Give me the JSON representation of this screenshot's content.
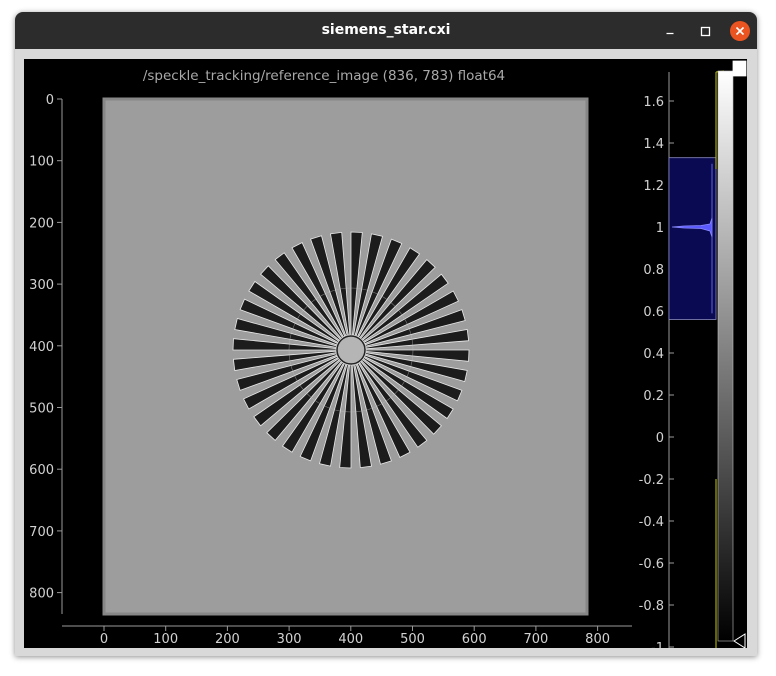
{
  "window": {
    "title": "siemens_star.cxi"
  },
  "plot": {
    "title": "/speckle_tracking/reference_image (836, 783) float64",
    "y_ticks": [
      "0",
      "100",
      "200",
      "300",
      "400",
      "500",
      "600",
      "700",
      "800"
    ],
    "x_ticks": [
      "0",
      "100",
      "200",
      "300",
      "400",
      "500",
      "600",
      "700",
      "800"
    ]
  },
  "histogram": {
    "ticks": [
      "1.6",
      "1.4",
      "1.2",
      "1",
      "0.8",
      "0.6",
      "0.4",
      "0.2",
      "0",
      "-0.2",
      "-0.4",
      "-0.6",
      "-0.8",
      "-1"
    ],
    "level_max": 1.7,
    "level_min": -1.0,
    "region_max": 1.33,
    "region_min": 0.56
  },
  "colors": {
    "titlebar": "#2c2c2c",
    "close": "#e95420",
    "image_background": "#9d9d9d",
    "histogram_region": "#0a0a52",
    "histogram_curve": "#5a5aff",
    "gradient_line": "#c8c800"
  },
  "icons": [
    "minimize-icon",
    "maximize-icon",
    "close-icon",
    "upper-level-handle-icon",
    "lower-level-handle-icon"
  ]
}
